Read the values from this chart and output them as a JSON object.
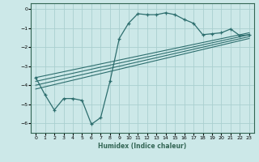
{
  "xlabel": "Humidex (Indice chaleur)",
  "ylabel": "",
  "bg_color": "#cce8e8",
  "grid_color": "#aacfcf",
  "line_color": "#2d6e6e",
  "spine_color": "#336655",
  "xlim": [
    -0.5,
    23.5
  ],
  "ylim": [
    -6.5,
    0.3
  ],
  "xticks": [
    0,
    1,
    2,
    3,
    4,
    5,
    6,
    7,
    8,
    9,
    10,
    11,
    12,
    13,
    14,
    15,
    16,
    17,
    18,
    19,
    20,
    21,
    22,
    23
  ],
  "yticks": [
    0,
    -1,
    -2,
    -3,
    -4,
    -5,
    -6
  ],
  "main_x": [
    0,
    1,
    2,
    3,
    4,
    5,
    6,
    7,
    8,
    9,
    10,
    11,
    12,
    13,
    14,
    15,
    16,
    17,
    18,
    19,
    20,
    21,
    22,
    23
  ],
  "main_y": [
    -3.6,
    -4.5,
    -5.3,
    -4.7,
    -4.7,
    -4.8,
    -6.05,
    -5.7,
    -3.8,
    -1.55,
    -0.75,
    -0.25,
    -0.3,
    -0.3,
    -0.2,
    -0.3,
    -0.55,
    -0.75,
    -1.35,
    -1.3,
    -1.25,
    -1.05,
    -1.4,
    -1.35
  ],
  "reg_lines": [
    {
      "x": [
        0,
        23
      ],
      "y": [
        -3.6,
        -1.25
      ]
    },
    {
      "x": [
        0,
        23
      ],
      "y": [
        -3.8,
        -1.35
      ]
    },
    {
      "x": [
        0,
        23
      ],
      "y": [
        -4.0,
        -1.45
      ]
    },
    {
      "x": [
        0,
        23
      ],
      "y": [
        -4.2,
        -1.55
      ]
    }
  ]
}
